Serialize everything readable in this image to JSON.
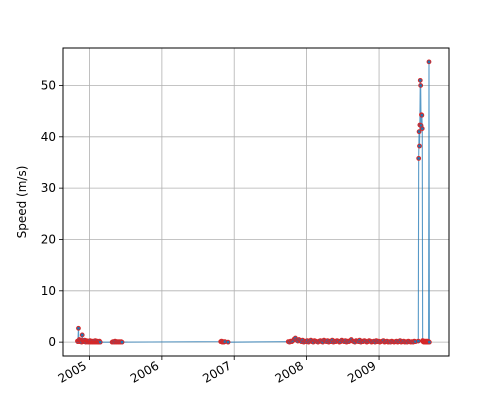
{
  "chart_data": {
    "type": "line",
    "title": "",
    "xlabel": "",
    "ylabel": "Speed (m/s)",
    "grid": true,
    "xlim": [
      "2004-08-20",
      "2009-12-20"
    ],
    "ylim": [
      -2.7,
      57.3
    ],
    "x_ticks": [
      "2005-01-01",
      "2006-01-01",
      "2007-01-01",
      "2008-01-01",
      "2009-01-01"
    ],
    "x_tick_labels": [
      "2005",
      "2006",
      "2007",
      "2008",
      "2009"
    ],
    "y_ticks": [
      0,
      10,
      20,
      30,
      40,
      50
    ],
    "y_tick_labels": [
      "0",
      "10",
      "20",
      "30",
      "40",
      "50"
    ],
    "colors": {
      "line": "#1f77b4",
      "marker_edge": "#d62728",
      "grid": "#b0b0b0"
    },
    "series": [
      {
        "x": [
          "2004-11-01",
          "2004-11-03",
          "2004-11-06",
          "2004-11-08",
          "2004-11-10",
          "2004-11-13",
          "2004-11-16",
          "2004-11-19",
          "2004-11-22",
          "2004-11-25",
          "2004-11-28",
          "2004-12-01",
          "2004-12-04",
          "2004-12-07",
          "2004-12-10",
          "2004-12-13",
          "2004-12-16",
          "2004-12-19",
          "2004-12-22",
          "2004-12-25",
          "2004-12-28",
          "2004-12-31",
          "2005-01-03",
          "2005-01-06",
          "2005-01-09",
          "2005-01-12",
          "2005-01-15",
          "2005-01-18",
          "2005-01-21",
          "2005-01-24",
          "2005-01-27",
          "2005-01-30",
          "2005-02-02",
          "2005-02-05",
          "2005-02-08",
          "2005-02-11",
          "2005-02-14",
          "2005-02-17",
          "2005-02-20",
          "2005-02-24",
          "2005-04-25",
          "2005-04-30",
          "2005-05-05",
          "2005-05-10",
          "2005-05-15",
          "2005-05-20",
          "2005-05-25",
          "2005-05-30",
          "2005-06-04",
          "2005-06-09",
          "2005-06-14",
          "2006-10-25",
          "2006-10-29",
          "2006-11-02",
          "2006-11-06",
          "2006-11-10",
          "2006-11-15",
          "2006-12-01",
          "2007-10-01",
          "2007-10-07",
          "2007-10-13",
          "2007-10-19",
          "2007-10-25",
          "2007-10-31",
          "2007-11-06",
          "2007-11-12",
          "2007-11-18",
          "2007-11-24",
          "2007-11-30",
          "2007-12-06",
          "2007-12-12",
          "2007-12-18",
          "2007-12-24",
          "2007-12-30",
          "2008-01-05",
          "2008-01-11",
          "2008-01-17",
          "2008-01-23",
          "2008-01-29",
          "2008-02-04",
          "2008-02-10",
          "2008-02-16",
          "2008-02-22",
          "2008-02-28",
          "2008-03-05",
          "2008-03-11",
          "2008-03-17",
          "2008-03-23",
          "2008-03-29",
          "2008-04-04",
          "2008-04-10",
          "2008-04-16",
          "2008-04-22",
          "2008-04-28",
          "2008-05-04",
          "2008-05-10",
          "2008-05-16",
          "2008-05-22",
          "2008-05-28",
          "2008-06-03",
          "2008-06-09",
          "2008-06-15",
          "2008-06-21",
          "2008-06-27",
          "2008-07-03",
          "2008-07-09",
          "2008-07-15",
          "2008-07-21",
          "2008-07-27",
          "2008-08-02",
          "2008-08-08",
          "2008-08-14",
          "2008-08-20",
          "2008-08-26",
          "2008-09-01",
          "2008-09-07",
          "2008-09-13",
          "2008-09-19",
          "2008-09-25",
          "2008-10-01",
          "2008-10-07",
          "2008-10-13",
          "2008-10-19",
          "2008-10-25",
          "2008-10-31",
          "2008-11-06",
          "2008-11-12",
          "2008-11-18",
          "2008-11-24",
          "2008-11-30",
          "2008-12-06",
          "2008-12-12",
          "2008-12-18",
          "2008-12-24",
          "2008-12-30",
          "2009-01-05",
          "2009-01-11",
          "2009-01-17",
          "2009-01-23",
          "2009-01-29",
          "2009-02-04",
          "2009-02-10",
          "2009-02-16",
          "2009-02-22",
          "2009-02-28",
          "2009-03-06",
          "2009-03-12",
          "2009-03-18",
          "2009-03-24",
          "2009-03-30",
          "2009-04-05",
          "2009-04-11",
          "2009-04-17",
          "2009-04-23",
          "2009-04-29",
          "2009-05-05",
          "2009-05-11",
          "2009-05-17",
          "2009-05-23",
          "2009-05-29",
          "2009-06-04",
          "2009-06-10",
          "2009-06-16",
          "2009-06-22",
          "2009-06-28",
          "2009-07-04",
          "2009-07-18",
          "2009-07-20",
          "2009-07-22",
          "2009-07-24",
          "2009-07-26",
          "2009-07-28",
          "2009-07-30",
          "2009-08-01",
          "2009-08-03",
          "2009-08-05",
          "2009-08-07",
          "2009-08-09",
          "2009-08-11",
          "2009-08-13",
          "2009-08-15",
          "2009-08-17",
          "2009-08-19",
          "2009-08-21",
          "2009-08-23",
          "2009-08-25",
          "2009-08-27",
          "2009-08-29",
          "2009-08-31",
          "2009-09-02",
          "2009-09-04",
          "2009-09-06",
          "2009-09-08",
          "2009-09-10",
          "2009-09-12"
        ],
        "y": [
          0.2,
          0.1,
          2.7,
          0.3,
          0.5,
          0.1,
          0.4,
          0.2,
          0.0,
          1.4,
          0.3,
          0.1,
          0.2,
          0.4,
          0.1,
          0.0,
          0.3,
          0.2,
          0.1,
          0.0,
          0.2,
          0.1,
          0.3,
          0.0,
          0.1,
          0.2,
          0.0,
          0.1,
          0.2,
          0.0,
          0.1,
          0.3,
          0.0,
          0.1,
          0.2,
          0.0,
          0.1,
          0.0,
          0.2,
          0.0,
          0.0,
          0.1,
          0.0,
          0.2,
          0.0,
          0.1,
          0.0,
          0.1,
          0.0,
          0.1,
          0.0,
          0.1,
          0.2,
          0.0,
          0.1,
          0.0,
          0.1,
          0.0,
          0.1,
          0.0,
          0.2,
          0.1,
          0.3,
          0.6,
          0.8,
          0.4,
          0.2,
          0.5,
          0.3,
          0.1,
          0.4,
          0.0,
          0.2,
          0.1,
          0.3,
          0.0,
          0.2,
          0.4,
          0.1,
          0.0,
          0.3,
          0.2,
          0.1,
          0.0,
          0.2,
          0.3,
          0.1,
          0.0,
          0.4,
          0.2,
          0.1,
          0.3,
          0.0,
          0.2,
          0.1,
          0.4,
          0.0,
          0.2,
          0.1,
          0.3,
          0.2,
          0.0,
          0.1,
          0.4,
          0.2,
          0.1,
          0.3,
          0.0,
          0.2,
          0.1,
          0.3,
          0.5,
          0.2,
          0.1,
          0.0,
          0.3,
          0.2,
          0.1,
          0.4,
          0.0,
          0.2,
          0.1,
          0.3,
          0.2,
          0.0,
          0.1,
          0.3,
          0.2,
          0.0,
          0.1,
          0.2,
          0.0,
          0.3,
          0.1,
          0.2,
          0.0,
          0.1,
          0.2,
          0.3,
          0.0,
          0.1,
          0.2,
          0.0,
          0.1,
          0.0,
          0.2,
          0.1,
          0.0,
          0.1,
          0.2,
          0.0,
          0.1,
          0.3,
          0.0,
          0.1,
          0.2,
          0.0,
          0.1,
          0.0,
          0.2,
          0.1,
          0.0,
          0.1,
          0.0,
          0.2,
          0.1,
          0.2,
          35.8,
          41.0,
          38.2,
          42.3,
          51.0,
          50.0,
          42.2,
          44.3,
          44.2,
          41.6,
          0.3,
          0.1,
          0.2,
          0.0,
          0.1,
          0.2,
          0.0,
          0.1,
          0.0,
          0.2,
          0.1,
          0.0,
          0.1,
          0.2,
          0.0,
          0.1,
          54.6,
          0.0
        ]
      }
    ]
  }
}
